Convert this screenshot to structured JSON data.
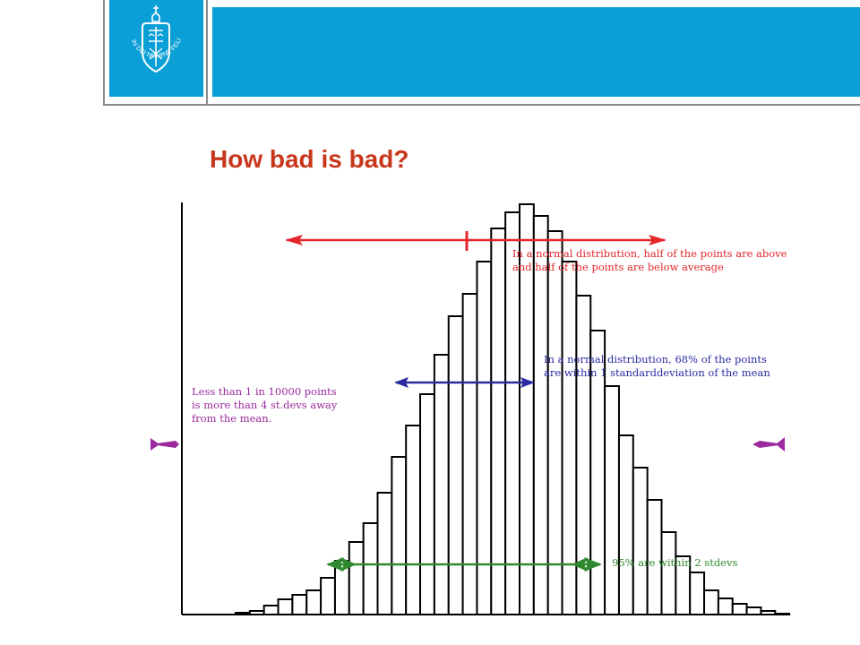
{
  "slide": {
    "title": "How bad is bad?",
    "colors": {
      "banner": "#0a9fd6",
      "title": "#c8361b",
      "red": "#e4252a",
      "blue": "#2a2aa3",
      "purple": "#9a2a9e",
      "green": "#2f8a2f"
    }
  },
  "logo": {
    "seal_text": "IN DEI NOMINE FELICITER",
    "icon": "university-seal-icon"
  },
  "annotations": {
    "half": "In a normal distribution, half of the points are above\nand half of the points are below average",
    "one_sd": "In a normal distribution, 68% of the points\nare within 1 standarddeviation of the mean",
    "four_sd": "Less than 1 in 10000 points\nis more than 4 st.devs away\nfrom the mean.",
    "two_sd": "95% are within 2 stdevs"
  },
  "histogram": {
    "bar_heights": [
      2,
      4,
      10,
      17,
      22,
      27,
      41,
      60,
      81,
      102,
      136,
      176,
      211,
      246,
      290,
      333,
      358,
      394,
      431,
      449,
      458,
      445,
      428,
      394,
      356,
      317,
      255,
      200,
      164,
      128,
      92,
      65,
      47,
      27,
      18,
      12,
      8,
      4,
      1
    ]
  }
}
